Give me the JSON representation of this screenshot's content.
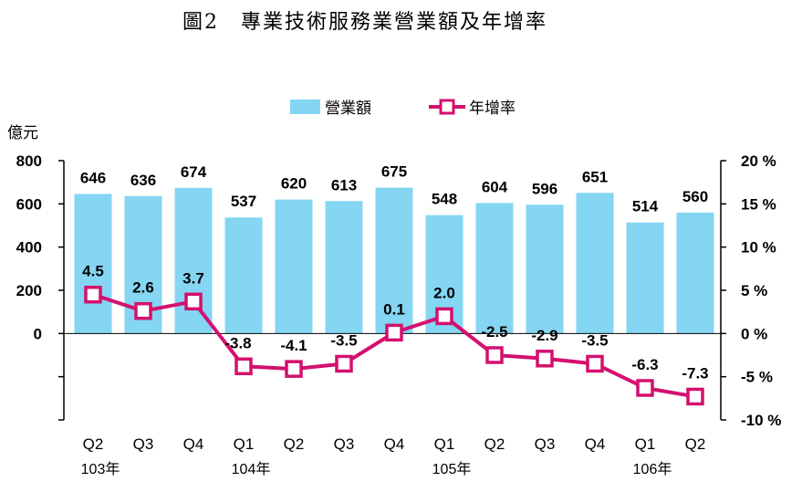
{
  "chart_data": {
    "type": "bar+line",
    "title": "圖2　專業技術服務業營業額及年增率",
    "ylabel_left": "億元",
    "categories": [
      "Q2",
      "Q3",
      "Q4",
      "Q1",
      "Q2",
      "Q3",
      "Q4",
      "Q1",
      "Q2",
      "Q3",
      "Q4",
      "Q1",
      "Q2"
    ],
    "year_labels": [
      {
        "label": "103年",
        "index": 0
      },
      {
        "label": "104年",
        "index": 3
      },
      {
        "label": "105年",
        "index": 7
      },
      {
        "label": "106年",
        "index": 11
      }
    ],
    "series": [
      {
        "name": "營業額",
        "type": "bar",
        "axis": "left",
        "color": "#84d6f2",
        "values": [
          646,
          636,
          674,
          537,
          620,
          613,
          675,
          548,
          604,
          596,
          651,
          514,
          560
        ]
      },
      {
        "name": "年增率",
        "type": "line",
        "axis": "right",
        "color": "#d4106e",
        "values": [
          4.5,
          2.6,
          3.7,
          -3.8,
          -4.1,
          -3.5,
          0.1,
          2.0,
          -2.5,
          -2.9,
          -3.5,
          -6.3,
          -7.3
        ]
      }
    ],
    "left_axis": {
      "range": [
        -400,
        800
      ],
      "ticks": [
        800,
        600,
        400,
        200,
        0,
        -200,
        -400
      ],
      "tick_labels": [
        "800",
        "600",
        "400",
        "200",
        "0",
        "",
        ""
      ]
    },
    "right_axis": {
      "range": [
        -10,
        20
      ],
      "ticks": [
        20,
        15,
        10,
        5,
        0,
        -5,
        -10
      ],
      "tick_labels": [
        "20 %",
        "15 %",
        "10 %",
        "5 %",
        "0 %",
        "-5 %",
        "-10 %"
      ]
    },
    "legend_position": "top-center",
    "grid": false
  }
}
